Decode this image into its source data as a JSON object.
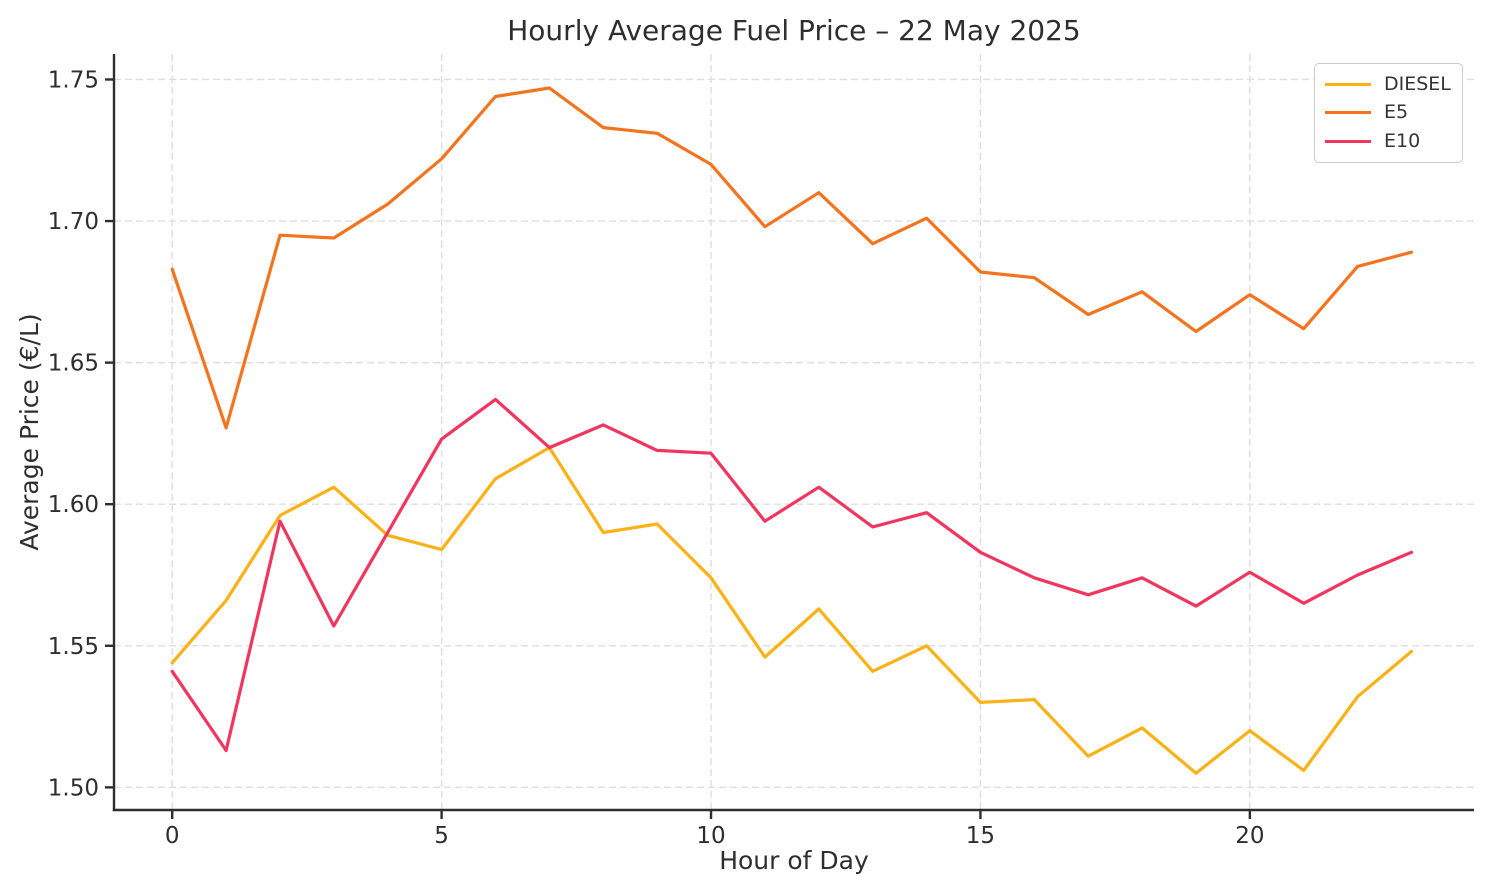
{
  "chart_data": {
    "type": "line",
    "title": "Hourly Average Fuel Price – 22 May 2025",
    "xlabel": "Hour of Day",
    "ylabel": "Average Price (€/L)",
    "x": [
      0,
      1,
      2,
      3,
      4,
      5,
      6,
      7,
      8,
      9,
      10,
      11,
      12,
      13,
      14,
      15,
      16,
      17,
      18,
      19,
      20,
      21,
      22,
      23
    ],
    "series": [
      {
        "name": "DIESEL",
        "color": "#FCB216",
        "values": [
          1.544,
          1.566,
          1.596,
          1.606,
          1.589,
          1.584,
          1.609,
          1.62,
          1.59,
          1.593,
          1.574,
          1.546,
          1.563,
          1.541,
          1.55,
          1.53,
          1.531,
          1.511,
          1.521,
          1.505,
          1.52,
          1.506,
          1.532,
          1.548
        ]
      },
      {
        "name": "E5",
        "color": "#F4731F",
        "values": [
          1.683,
          1.627,
          1.695,
          1.694,
          1.706,
          1.722,
          1.744,
          1.747,
          1.733,
          1.731,
          1.72,
          1.698,
          1.71,
          1.692,
          1.701,
          1.682,
          1.68,
          1.667,
          1.675,
          1.661,
          1.674,
          1.662,
          1.684,
          1.689
        ]
      },
      {
        "name": "E10",
        "color": "#F0355F",
        "values": [
          1.541,
          1.513,
          1.594,
          1.557,
          1.59,
          1.623,
          1.637,
          1.62,
          1.628,
          1.619,
          1.618,
          1.594,
          1.606,
          1.592,
          1.597,
          1.583,
          1.574,
          1.568,
          1.574,
          1.564,
          1.576,
          1.565,
          1.575,
          1.583
        ]
      }
    ],
    "xticks": [
      0,
      5,
      10,
      15,
      20
    ],
    "xtick_labels": [
      "0",
      "5",
      "10",
      "15",
      "20"
    ],
    "yticks": [
      1.5,
      1.55,
      1.6,
      1.65,
      1.7,
      1.75
    ],
    "ytick_labels": [
      "1.50",
      "1.55",
      "1.60",
      "1.65",
      "1.70",
      "1.75"
    ],
    "xlim": [
      -1.08,
      24.16
    ],
    "ylim": [
      1.492,
      1.759
    ],
    "grid": "dashed",
    "legend_position": "upper right"
  }
}
